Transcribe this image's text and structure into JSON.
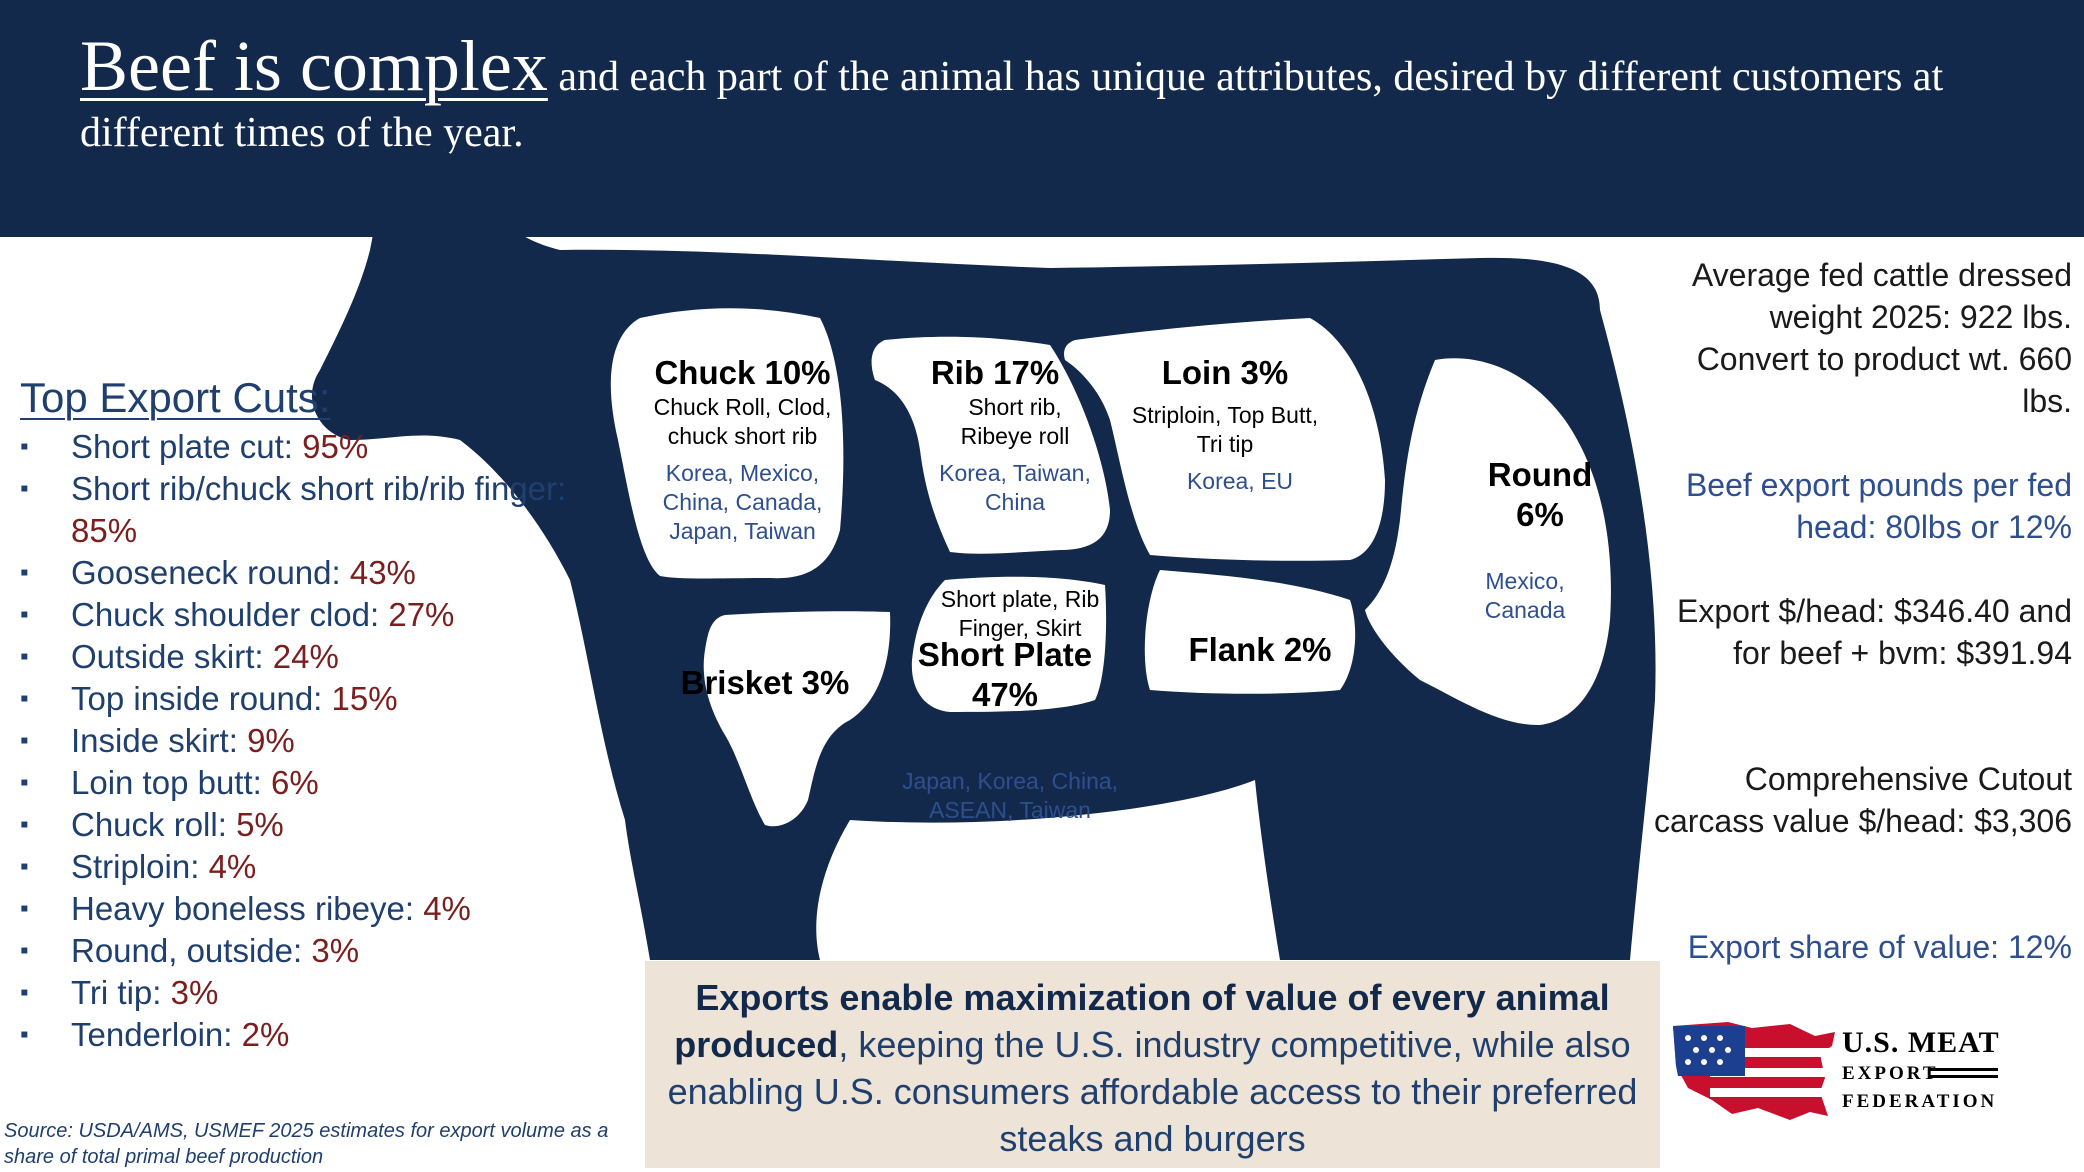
{
  "header": {
    "title_emphasis": "Beef is complex",
    "title_rest": " and each part of the animal has unique attributes, desired by different customers at different times of the year."
  },
  "top_cuts": {
    "heading": "Top Export Cuts:",
    "items": [
      {
        "label": "Short plate cut: ",
        "pct": "95%"
      },
      {
        "label": "Short rib/chuck short rib/rib finger: ",
        "pct": "85%"
      },
      {
        "label": "Gooseneck round: ",
        "pct": "43%"
      },
      {
        "label": "Chuck shoulder clod: ",
        "pct": "27%"
      },
      {
        "label": "Outside skirt: ",
        "pct": "24%"
      },
      {
        "label": "Top inside round: ",
        "pct": "15%"
      },
      {
        "label": "Inside skirt: ",
        "pct": "9%"
      },
      {
        "label": "Loin top butt: ",
        "pct": "6%"
      },
      {
        "label": "Chuck roll: ",
        "pct": "5%"
      },
      {
        "label": "Striploin: ",
        "pct": "4%"
      },
      {
        "label": "Heavy boneless ribeye: ",
        "pct": "4%"
      },
      {
        "label": "Round, outside: ",
        "pct": "3%"
      },
      {
        "label": "Tri tip: ",
        "pct": "3%"
      },
      {
        "label": "Tenderloin: ",
        "pct": "2%"
      }
    ]
  },
  "source": "Source: USDA/AMS, USMEF 2025 estimates for export volume as a share of total primal beef production",
  "primals": {
    "chuck": {
      "name": "Chuck 10%",
      "cuts": "Chuck Roll, Clod, chuck short rib",
      "markets": "Korea, Mexico, China, Canada, Japan, Taiwan"
    },
    "rib": {
      "name": "Rib 17%",
      "cuts": "Short rib, Ribeye roll",
      "markets": "Korea, Taiwan, China"
    },
    "loin": {
      "name": "Loin 3%",
      "cuts": "Striploin, Top Butt, Tri tip",
      "markets": "Korea, EU"
    },
    "round": {
      "name": "Round 6%",
      "markets": "Mexico, Canada"
    },
    "brisket": {
      "name": "Brisket 3%"
    },
    "short_plate": {
      "name": "Short Plate 47%",
      "cuts": "Short plate, Rib Finger, Skirt",
      "markets": "Japan, Korea, China, ASEAN, Taiwan"
    },
    "flank": {
      "name": "Flank 2%"
    }
  },
  "stats": {
    "weight": "Average fed cattle dressed weight 2025: 922 lbs.  Convert to product wt. 660 lbs.",
    "export_pounds": "Beef export pounds per fed head: 80lbs or 12%",
    "export_value": "Export $/head: $346.40 and for beef + bvm: $391.94",
    "cutout": "Comprehensive Cutout carcass value $/head: $3,306",
    "export_share": "Export share of value: 12%"
  },
  "callout": {
    "bold": "Exports enable maximization of value of every animal produced",
    "rest": ", keeping the U.S. industry competitive, while also enabling U.S. consumers affordable access to their preferred steaks and burgers"
  },
  "logo": {
    "line1": "U.S. MEAT",
    "line2": "EXPORT",
    "line3": "FEDERATION"
  },
  "colors": {
    "navy": "#13294b",
    "cow": "#13294b",
    "accent_red": "#7a1e1e",
    "market_blue": "#2e4f8f",
    "callout_bg": "#ede3d6"
  }
}
